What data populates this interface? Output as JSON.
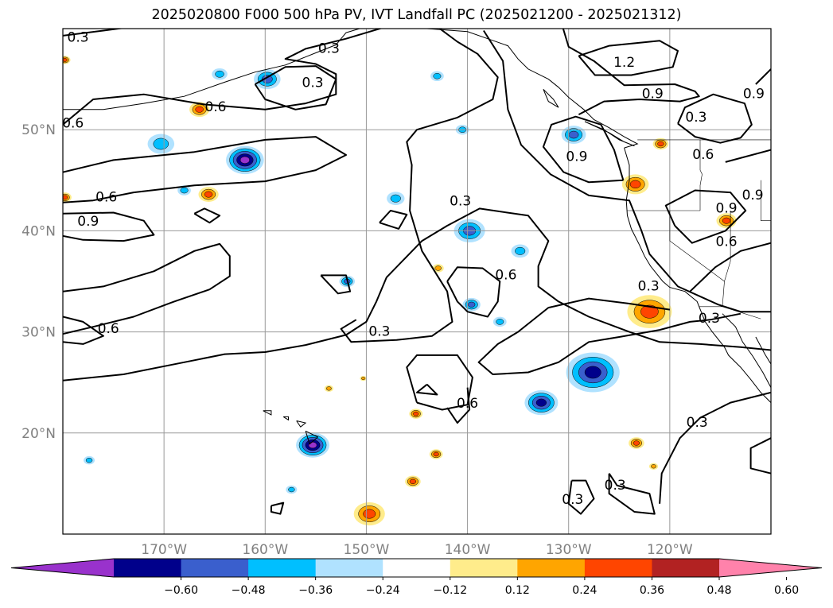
{
  "title": "2025020800 F000 500 hPa PV, IVT Landfall PC (2025021200 - 2025021312)",
  "map": {
    "projection": "PlateCarree",
    "lon_range": [
      -180,
      -110
    ],
    "lat_range": [
      10,
      60
    ],
    "grid": true,
    "coastlines": true,
    "state_borders": true
  },
  "lon_ticks": [
    {
      "value": -170,
      "label": "170°W"
    },
    {
      "value": -160,
      "label": "160°W"
    },
    {
      "value": -150,
      "label": "150°W"
    },
    {
      "value": -140,
      "label": "140°W"
    },
    {
      "value": -130,
      "label": "130°W"
    },
    {
      "value": -120,
      "label": "120°W"
    }
  ],
  "lat_ticks": [
    {
      "value": 20,
      "label": "20°N"
    },
    {
      "value": 30,
      "label": "30°N"
    },
    {
      "value": 40,
      "label": "40°N"
    },
    {
      "value": 50,
      "label": "50°N"
    }
  ],
  "contour_labels": [
    {
      "text": "0.3",
      "lon": -178.5,
      "lat": 59.1
    },
    {
      "text": "0.3",
      "lon": -153.7,
      "lat": 58.0
    },
    {
      "text": "0.3",
      "lon": -155.3,
      "lat": 54.6
    },
    {
      "text": "0.6",
      "lon": -164.9,
      "lat": 52.2
    },
    {
      "text": "0.6",
      "lon": -179.0,
      "lat": 50.6
    },
    {
      "text": "0.6",
      "lon": -175.7,
      "lat": 43.3
    },
    {
      "text": "0.9",
      "lon": -177.5,
      "lat": 40.9
    },
    {
      "text": "0.6",
      "lon": -175.5,
      "lat": 30.3
    },
    {
      "text": "0.3",
      "lon": -140.7,
      "lat": 42.9
    },
    {
      "text": "0.3",
      "lon": -148.7,
      "lat": 30.0
    },
    {
      "text": "0.6",
      "lon": -136.2,
      "lat": 35.6
    },
    {
      "text": "0.6",
      "lon": -140.0,
      "lat": 22.9
    },
    {
      "text": "0.3",
      "lon": -129.6,
      "lat": 13.4
    },
    {
      "text": "0.3",
      "lon": -125.4,
      "lat": 14.8
    },
    {
      "text": "1.2",
      "lon": -124.5,
      "lat": 56.6
    },
    {
      "text": "0.9",
      "lon": -121.7,
      "lat": 53.5
    },
    {
      "text": "0.3",
      "lon": -117.4,
      "lat": 51.2
    },
    {
      "text": "0.9",
      "lon": -129.2,
      "lat": 47.3
    },
    {
      "text": "0.6",
      "lon": -116.7,
      "lat": 47.5
    },
    {
      "text": "0.9",
      "lon": -111.7,
      "lat": 53.5
    },
    {
      "text": "0.9",
      "lon": -114.4,
      "lat": 42.2
    },
    {
      "text": "0.9",
      "lon": -111.8,
      "lat": 43.5
    },
    {
      "text": "0.6",
      "lon": -114.4,
      "lat": 38.9
    },
    {
      "text": "0.3",
      "lon": -122.1,
      "lat": 34.5
    },
    {
      "text": "0.3",
      "lon": -116.1,
      "lat": 31.3
    },
    {
      "text": "0.3",
      "lon": -117.3,
      "lat": 21.0
    }
  ],
  "pv_anomaly_blobs": [
    {
      "lon": -162.0,
      "lat": 47.0,
      "r": 1.7,
      "value": -0.6
    },
    {
      "lon": -159.8,
      "lat": 55.0,
      "r": 1.2,
      "value": -0.4
    },
    {
      "lon": -164.5,
      "lat": 55.5,
      "r": 0.7,
      "value": -0.3
    },
    {
      "lon": -170.3,
      "lat": 48.6,
      "r": 1.2,
      "value": -0.3
    },
    {
      "lon": -166.5,
      "lat": 52.0,
      "r": 0.9,
      "value": 0.38
    },
    {
      "lon": -165.6,
      "lat": 43.6,
      "r": 0.9,
      "value": 0.38
    },
    {
      "lon": -168.0,
      "lat": 44.0,
      "r": 0.6,
      "value": -0.28
    },
    {
      "lon": -179.8,
      "lat": 56.9,
      "r": 0.5,
      "value": 0.36
    },
    {
      "lon": -179.8,
      "lat": 43.3,
      "r": 0.6,
      "value": 0.38
    },
    {
      "lon": -143.0,
      "lat": 55.3,
      "r": 0.6,
      "value": -0.35
    },
    {
      "lon": -140.5,
      "lat": 50.0,
      "r": 0.6,
      "value": -0.35
    },
    {
      "lon": -147.1,
      "lat": 43.2,
      "r": 0.8,
      "value": -0.3
    },
    {
      "lon": -139.8,
      "lat": 40.0,
      "r": 1.4,
      "value": -0.45
    },
    {
      "lon": -134.8,
      "lat": 38.0,
      "r": 0.8,
      "value": -0.35
    },
    {
      "lon": -151.9,
      "lat": 35.0,
      "r": 0.7,
      "value": -0.4
    },
    {
      "lon": -139.6,
      "lat": 32.7,
      "r": 0.8,
      "value": -0.4
    },
    {
      "lon": -136.8,
      "lat": 31.0,
      "r": 0.6,
      "value": -0.32
    },
    {
      "lon": -132.7,
      "lat": 23.0,
      "r": 1.5,
      "value": -0.55
    },
    {
      "lon": -127.6,
      "lat": 26.0,
      "r": 2.4,
      "value": -0.58
    },
    {
      "lon": -155.3,
      "lat": 18.8,
      "r": 1.5,
      "value": -0.6
    },
    {
      "lon": -177.4,
      "lat": 17.3,
      "r": 0.5,
      "value": -0.3
    },
    {
      "lon": -157.4,
      "lat": 14.4,
      "r": 0.5,
      "value": -0.3
    },
    {
      "lon": -129.5,
      "lat": 49.5,
      "r": 1.1,
      "value": -0.42
    },
    {
      "lon": -123.4,
      "lat": 44.6,
      "r": 1.2,
      "value": 0.42
    },
    {
      "lon": -120.9,
      "lat": 48.6,
      "r": 0.7,
      "value": 0.4
    },
    {
      "lon": -114.4,
      "lat": 41.0,
      "r": 0.9,
      "value": 0.4
    },
    {
      "lon": -122.0,
      "lat": 32.0,
      "r": 2.0,
      "value": 0.42
    },
    {
      "lon": -123.3,
      "lat": 19.0,
      "r": 0.7,
      "value": 0.4
    },
    {
      "lon": -142.9,
      "lat": 36.3,
      "r": 0.5,
      "value": 0.35
    },
    {
      "lon": -145.1,
      "lat": 21.9,
      "r": 0.6,
      "value": 0.38
    },
    {
      "lon": -143.1,
      "lat": 17.9,
      "r": 0.6,
      "value": 0.38
    },
    {
      "lon": -145.4,
      "lat": 15.2,
      "r": 0.7,
      "value": 0.38
    },
    {
      "lon": -149.7,
      "lat": 12.0,
      "r": 1.4,
      "value": 0.4
    },
    {
      "lon": -153.7,
      "lat": 24.4,
      "r": 0.4,
      "value": 0.3
    },
    {
      "lon": -150.3,
      "lat": 25.4,
      "r": 0.3,
      "value": 0.3
    },
    {
      "lon": -121.6,
      "lat": 16.7,
      "r": 0.4,
      "value": 0.35
    }
  ],
  "colorbar": {
    "ticks": [
      "−0.60",
      "−0.48",
      "−0.36",
      "−0.24",
      "−0.12",
      "0.12",
      "0.24",
      "0.36",
      "0.48",
      "0.60"
    ],
    "colors": [
      "#9932cc",
      "#00008b",
      "#3a5fcd",
      "#00bfff",
      "#b0e2ff",
      "#ffffff",
      "#ffec8b",
      "#ffa500",
      "#ff4500",
      "#b22222",
      "#ff82ab"
    ]
  }
}
